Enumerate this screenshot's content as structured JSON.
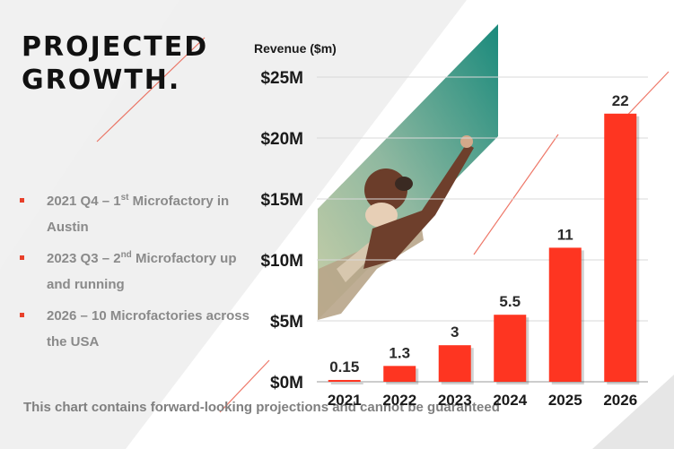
{
  "title_lines": [
    "PROJECTED",
    "GROWTH."
  ],
  "bullets": [
    {
      "parts": [
        "2021 Q4 – 1",
        "st",
        " Microfactory in Austin"
      ]
    },
    {
      "parts": [
        "2023 Q3 – 2",
        "nd",
        " Microfactory up and running"
      ]
    },
    {
      "parts": [
        "2026 – 10 Microfactories across the USA",
        "",
        ""
      ]
    }
  ],
  "footer": "This chart contains forward-looking projections and cannot be guaranteed",
  "colors": {
    "bar": "#fe3521",
    "accent_line": "#e8402a",
    "panel": "#f0f0f0",
    "axis_line": "#9a9a9a"
  },
  "chart_data": {
    "type": "bar",
    "ylabel": "Revenue ($m)",
    "categories": [
      "2021",
      "2022",
      "2023",
      "2024",
      "2025",
      "2026"
    ],
    "values": [
      0.15,
      1.3,
      3,
      5.5,
      11,
      22
    ],
    "value_labels": [
      "0.15",
      "1.3",
      "3",
      "5.5",
      "11",
      "22"
    ],
    "yticks": [
      0,
      5,
      10,
      15,
      20,
      25
    ],
    "ytick_labels": [
      "$0M",
      "$5M",
      "$10M",
      "$15M",
      "$20M",
      "$25M"
    ],
    "ylim": [
      0,
      25
    ],
    "grid": true,
    "legend": "none"
  }
}
